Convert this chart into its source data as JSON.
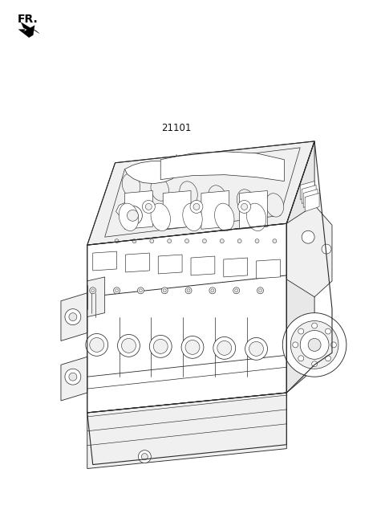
{
  "background_color": "#ffffff",
  "fr_label": "FR.",
  "part_number": "21101",
  "lc": "#2a2a2a",
  "lw": 0.65,
  "fig_width": 4.8,
  "fig_height": 6.55,
  "dpi": 100,
  "engine_fc": "#ffffff",
  "engine_shade1": "#f0f0f0",
  "engine_shade2": "#e8e8e8",
  "engine_shade3": "#dcdcdc"
}
